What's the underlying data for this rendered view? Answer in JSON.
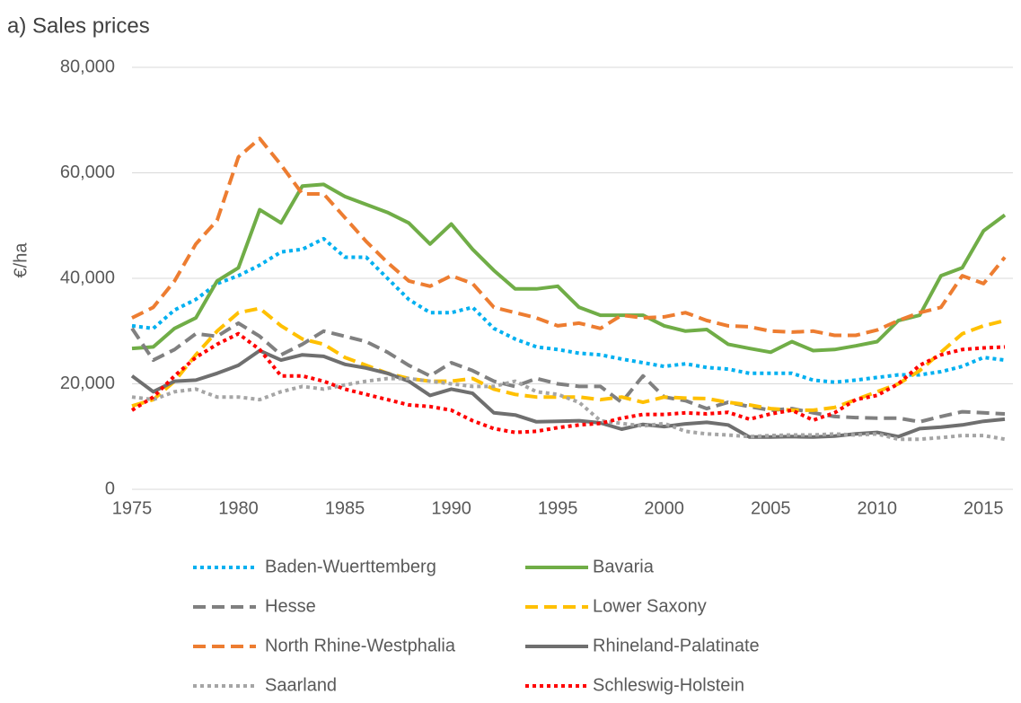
{
  "chart_data": {
    "type": "line",
    "title": "a) Sales prices",
    "y_label": "€/ha",
    "x": [
      1975,
      1976,
      1977,
      1978,
      1979,
      1980,
      1981,
      1982,
      1983,
      1984,
      1985,
      1986,
      1987,
      1988,
      1989,
      1990,
      1991,
      1992,
      1993,
      1994,
      1995,
      1996,
      1997,
      1998,
      1999,
      2000,
      2001,
      2002,
      2003,
      2004,
      2005,
      2006,
      2007,
      2008,
      2009,
      2010,
      2011,
      2012,
      2013,
      2014,
      2015,
      2016
    ],
    "xlim": [
      1975,
      2016
    ],
    "xticks": [
      1975,
      1980,
      1985,
      1990,
      1995,
      2000,
      2005,
      2010,
      2015
    ],
    "ylim": [
      0,
      80000
    ],
    "yticks": [
      0,
      {
        "value": 20000,
        "label": "20,000"
      },
      {
        "value": 40000,
        "label": "40,000"
      },
      {
        "value": 60000,
        "label": "60,000"
      },
      {
        "value": 80000,
        "label": "80,000"
      }
    ],
    "grid": true,
    "series": [
      {
        "name": "Baden-Wuerttemberg",
        "color": "#00b0f0",
        "dash": "dotted",
        "values": [
          31000,
          30500,
          34000,
          36000,
          39000,
          40500,
          42500,
          45000,
          45500,
          47500,
          44000,
          44000,
          40000,
          36000,
          33500,
          33500,
          34500,
          30500,
          28500,
          27000,
          26500,
          25800,
          25500,
          24700,
          24000,
          23300,
          23800,
          23100,
          22800,
          22000,
          22000,
          22000,
          20700,
          20300,
          20700,
          21200,
          21700,
          21700,
          22300,
          23300,
          25000,
          24500
        ]
      },
      {
        "name": "Bavaria",
        "color": "#70ad47",
        "dash": "solid",
        "values": [
          26700,
          27000,
          30500,
          32500,
          39500,
          42000,
          53000,
          50500,
          57500,
          57800,
          55500,
          54000,
          52500,
          50500,
          46500,
          50300,
          45500,
          41500,
          38000,
          38000,
          38500,
          34500,
          33000,
          33000,
          33000,
          31000,
          30000,
          30300,
          27500,
          26700,
          26000,
          28000,
          26300,
          26500,
          27200,
          28000,
          32000,
          33000,
          40500,
          42000,
          49000,
          52000
        ]
      },
      {
        "name": "Hesse",
        "color": "#808080",
        "dash": "dashed",
        "values": [
          30500,
          24500,
          26500,
          29500,
          29000,
          31500,
          29000,
          25500,
          27500,
          30000,
          29000,
          28000,
          26000,
          23500,
          21500,
          24000,
          22500,
          20500,
          19500,
          21000,
          20000,
          19500,
          19500,
          16500,
          21500,
          17500,
          16800,
          15300,
          16500,
          15700,
          15000,
          15300,
          14500,
          13800,
          13600,
          13500,
          13500,
          12800,
          13800,
          14700,
          14500,
          14300
        ]
      },
      {
        "name": "Lower Saxony",
        "color": "#ffc000",
        "dash": "dashed",
        "values": [
          15800,
          17000,
          20500,
          25500,
          30000,
          33500,
          34300,
          31000,
          28500,
          27500,
          25000,
          23500,
          22000,
          21000,
          20500,
          20500,
          21000,
          19000,
          18000,
          17500,
          17500,
          17500,
          17000,
          17500,
          16500,
          17500,
          17300,
          17200,
          16500,
          16000,
          15300,
          15000,
          15000,
          15500,
          17000,
          18500,
          20000,
          22500,
          26000,
          29500,
          31000,
          32000
        ]
      },
      {
        "name": "North Rhine-Westphalia",
        "color": "#ed7d31",
        "dash": "dashed",
        "values": [
          32500,
          34500,
          39500,
          46500,
          51000,
          63000,
          66500,
          61500,
          56000,
          56000,
          51500,
          47000,
          43000,
          39500,
          38500,
          40500,
          39000,
          34500,
          33500,
          32500,
          31000,
          31500,
          30500,
          33000,
          32500,
          32700,
          33500,
          32000,
          31000,
          30800,
          30000,
          29800,
          30000,
          29200,
          29200,
          30200,
          32000,
          33500,
          34500,
          40500,
          39000,
          44000
        ]
      },
      {
        "name": "Rhineland-Palatinate",
        "color": "#6f6f6f",
        "dash": "solid",
        "values": [
          21500,
          18500,
          20500,
          20700,
          22000,
          23500,
          26300,
          24500,
          25500,
          25200,
          23700,
          23000,
          22000,
          20500,
          17800,
          19000,
          18200,
          14500,
          14100,
          12800,
          12900,
          13000,
          12600,
          11400,
          12300,
          11900,
          12400,
          12700,
          12200,
          9900,
          9900,
          10000,
          9900,
          10100,
          10500,
          10800,
          10000,
          11500,
          11800,
          12200,
          12900,
          13300
        ]
      },
      {
        "name": "Saarland",
        "color": "#a5a5a5",
        "dash": "dotted",
        "values": [
          17500,
          17000,
          18500,
          19000,
          17500,
          17500,
          17000,
          18500,
          19500,
          19000,
          19800,
          20500,
          21000,
          21000,
          20500,
          20000,
          19500,
          19500,
          20500,
          18500,
          18000,
          16500,
          13000,
          12500,
          12000,
          12500,
          11000,
          10500,
          10300,
          10000,
          10200,
          10300,
          10300,
          10500,
          10300,
          10500,
          9500,
          9500,
          9800,
          10200,
          10200,
          9500
        ]
      },
      {
        "name": "Schleswig-Holstein",
        "color": "#ff0000",
        "dash": "dotted",
        "values": [
          15000,
          17500,
          21500,
          25000,
          27500,
          29500,
          26500,
          21500,
          21500,
          20500,
          19000,
          18000,
          17000,
          16000,
          15700,
          15000,
          13000,
          11500,
          10800,
          11000,
          11700,
          12200,
          12500,
          13500,
          14200,
          14200,
          14500,
          14300,
          14600,
          13300,
          14300,
          15000,
          13100,
          14500,
          17000,
          17800,
          20000,
          23500,
          25500,
          26500,
          26800,
          27000
        ]
      }
    ]
  }
}
